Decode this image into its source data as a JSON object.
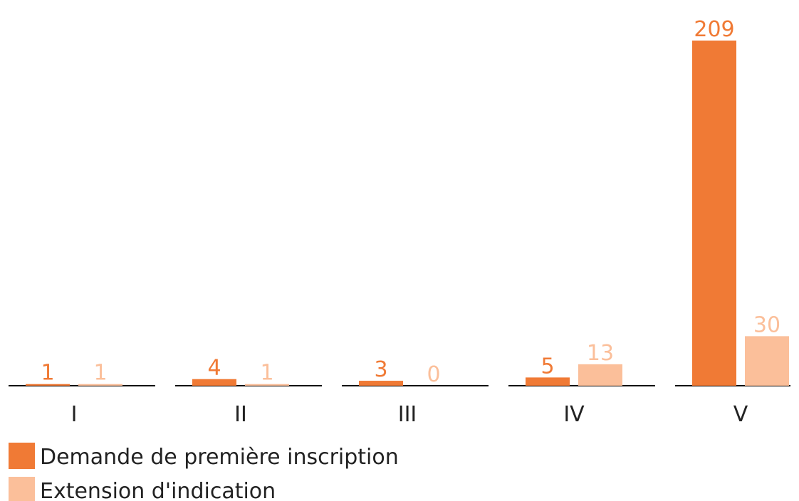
{
  "chart_data": {
    "type": "bar",
    "categories": [
      "I",
      "II",
      "III",
      "IV",
      "V"
    ],
    "series": [
      {
        "name": "Demande de première inscription",
        "color": "#f07a35",
        "values": [
          1,
          4,
          3,
          5,
          209
        ]
      },
      {
        "name": "Extension d'indication",
        "color": "#fbbf9a",
        "values": [
          1,
          1,
          0,
          13,
          30
        ]
      }
    ],
    "legend": "bottom-left"
  }
}
